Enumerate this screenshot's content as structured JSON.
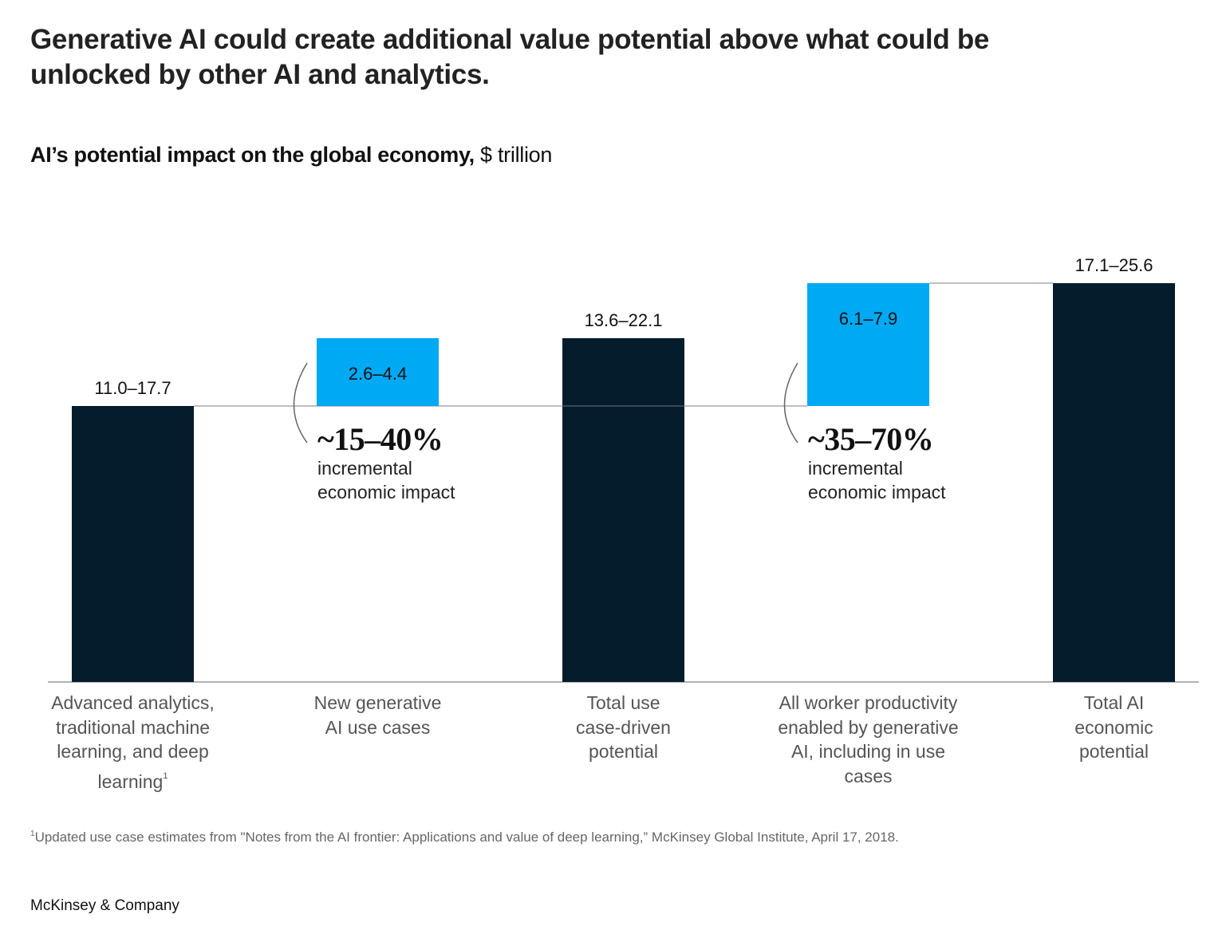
{
  "title": "Generative AI could create additional value potential above what could be unlocked by other AI and analytics.",
  "subtitle": {
    "bold": "AI’s potential impact on the global economy,",
    "unit": " $ trillion"
  },
  "colors": {
    "dark_bar": "#051C2C",
    "increment_bar": "#00A9F4",
    "connector": "#999999",
    "axis": "#999999"
  },
  "chart_data": {
    "type": "bar",
    "subtype": "waterfall",
    "title": "AI’s potential impact on the global economy",
    "ylabel": "$ trillion",
    "categories": [
      "Advanced analytics, traditional machine learning, and deep learning",
      "New generative AI use cases",
      "Total use case-driven potential",
      "All worker productivity enabled by generative AI, including in use cases",
      "Total AI economic potential"
    ],
    "category_lines": [
      [
        "Advanced analytics,",
        "traditional machine",
        "learning, and deep",
        "learning"
      ],
      [
        "New generative",
        "AI use cases"
      ],
      [
        "Total use",
        "case-driven",
        "potential"
      ],
      [
        "All worker productivity",
        "enabled by generative",
        "AI, including in use",
        "cases"
      ],
      [
        "Total AI",
        "economic",
        "potential"
      ]
    ],
    "footnote_marks": [
      "1",
      "",
      "",
      "",
      ""
    ],
    "series": [
      {
        "name": "low",
        "values": [
          11.0,
          2.6,
          13.6,
          6.1,
          17.1
        ]
      },
      {
        "name": "high",
        "values": [
          17.7,
          4.4,
          22.1,
          7.9,
          25.6
        ]
      }
    ],
    "bar_kinds": [
      "total",
      "increment",
      "total",
      "increment",
      "total"
    ],
    "value_labels": [
      "11.0–17.7",
      "2.6–4.4",
      "13.6–22.1",
      "6.1–7.9",
      "17.1–25.6"
    ],
    "value_label_position": [
      "above",
      "inside",
      "above",
      "inside",
      "above"
    ],
    "annotations": [
      {
        "bar_index": 1,
        "value": "~15–40%",
        "text_lines": [
          "incremental",
          "economic impact"
        ]
      },
      {
        "bar_index": 3,
        "value": "~35–70%",
        "text_lines": [
          "incremental",
          "economic impact"
        ]
      }
    ],
    "grid": false,
    "legend": "none"
  },
  "footnote": {
    "mark": "1",
    "text": "Updated use case estimates from \"Notes from the AI frontier: Applications and value of deep learning,” McKinsey Global Institute, April 17, 2018."
  },
  "brand": "McKinsey & Company"
}
